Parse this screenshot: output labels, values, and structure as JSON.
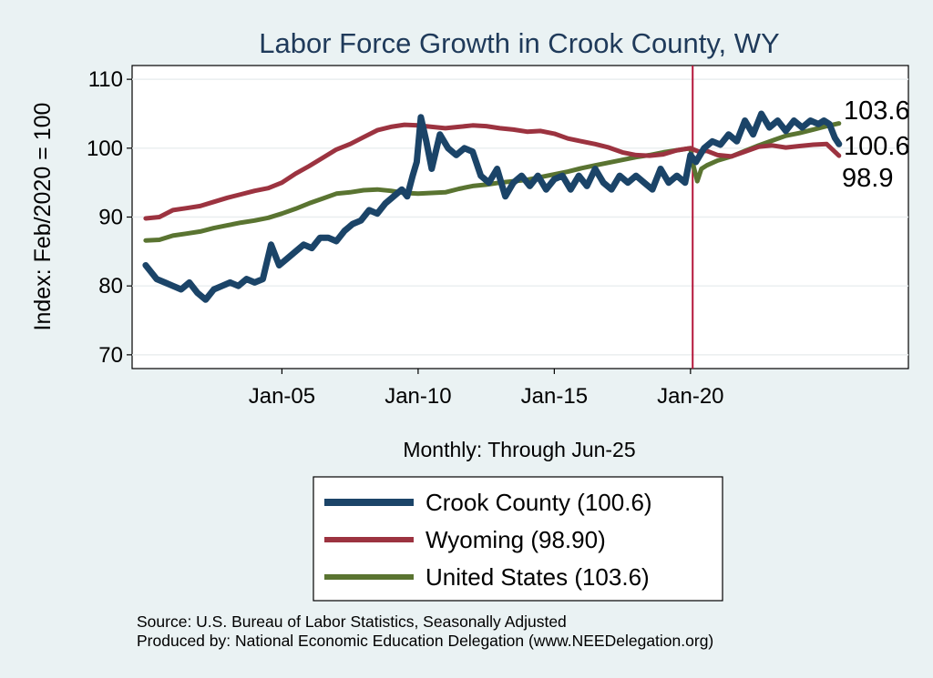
{
  "chart_data": {
    "type": "line",
    "title": "Labor Force Growth in Crook  County, WY",
    "ylabel": "Index: Feb/2020 = 100",
    "xlabel": "Monthly: Through Jun-25",
    "ylim": [
      68,
      112
    ],
    "xlim": [
      1999.5,
      2028
    ],
    "yticks": [
      70,
      80,
      90,
      100,
      110
    ],
    "xticks": [
      {
        "label": "Jan-05",
        "x": 2005
      },
      {
        "label": "Jan-10",
        "x": 2010
      },
      {
        "label": "Jan-15",
        "x": 2015
      },
      {
        "label": "Jan-20",
        "x": 2020
      }
    ],
    "reference_line_x": 2020.08,
    "grid": true,
    "series": [
      {
        "name": "Crook  County",
        "legend_label": "Crook  County (100.6)",
        "color": "#1b4468",
        "end_label": "100.6",
        "x": [
          2000.0,
          2000.2,
          2000.4,
          2000.7,
          2001.0,
          2001.3,
          2001.6,
          2001.9,
          2002.2,
          2002.5,
          2002.8,
          2003.1,
          2003.4,
          2003.7,
          2004.0,
          2004.3,
          2004.6,
          2004.9,
          2005.2,
          2005.5,
          2005.8,
          2006.1,
          2006.4,
          2006.7,
          2007.0,
          2007.3,
          2007.6,
          2007.9,
          2008.2,
          2008.5,
          2008.8,
          2009.1,
          2009.4,
          2009.6,
          2009.8,
          2009.95,
          2010.1,
          2010.3,
          2010.5,
          2010.8,
          2011.1,
          2011.4,
          2011.7,
          2012.0,
          2012.3,
          2012.6,
          2012.9,
          2013.2,
          2013.5,
          2013.8,
          2014.1,
          2014.4,
          2014.7,
          2015.0,
          2015.3,
          2015.6,
          2015.9,
          2016.2,
          2016.5,
          2016.8,
          2017.1,
          2017.4,
          2017.7,
          2018.0,
          2018.3,
          2018.6,
          2018.9,
          2019.2,
          2019.5,
          2019.8,
          2020.0,
          2020.2,
          2020.5,
          2020.8,
          2021.1,
          2021.4,
          2021.7,
          2022.0,
          2022.3,
          2022.6,
          2022.9,
          2023.2,
          2023.5,
          2023.8,
          2024.1,
          2024.4,
          2024.7,
          2024.9,
          2025.1,
          2025.3,
          2025.45
        ],
        "values": [
          83,
          82,
          81,
          80.5,
          80,
          79.5,
          80.5,
          79,
          78,
          79.5,
          80,
          80.5,
          80,
          81,
          80.5,
          81,
          86,
          83,
          84,
          85,
          86,
          85.5,
          87,
          87,
          86.5,
          88,
          89,
          89.5,
          91,
          90.5,
          92,
          93,
          94,
          93,
          96,
          98,
          104.5,
          101,
          97,
          102,
          100,
          99,
          100,
          99.5,
          96,
          95,
          97,
          93,
          95,
          96,
          94.5,
          96,
          94,
          95.5,
          96,
          94,
          96,
          94.5,
          97,
          95,
          94,
          96,
          95,
          96,
          95,
          94,
          97,
          95,
          96,
          95,
          99,
          98,
          100,
          101,
          100.5,
          102,
          101,
          104,
          102,
          105,
          103,
          104,
          102.5,
          104,
          103,
          104,
          103.5,
          104,
          103.5,
          101.5,
          100.6
        ]
      },
      {
        "name": "Wyoming",
        "legend_label": "Wyoming (98.90)",
        "color": "#9c3340",
        "end_label": "98.9",
        "x": [
          2000.0,
          2000.5,
          2001.0,
          2001.5,
          2002.0,
          2002.5,
          2003.0,
          2003.5,
          2004.0,
          2004.5,
          2005.0,
          2005.5,
          2006.0,
          2006.5,
          2007.0,
          2007.5,
          2008.0,
          2008.5,
          2009.0,
          2009.5,
          2010.0,
          2010.5,
          2011.0,
          2011.5,
          2012.0,
          2012.5,
          2013.0,
          2013.5,
          2014.0,
          2014.5,
          2015.0,
          2015.5,
          2016.0,
          2016.5,
          2017.0,
          2017.5,
          2018.0,
          2018.5,
          2019.0,
          2019.5,
          2020.0,
          2020.3,
          2020.6,
          2021.0,
          2021.5,
          2022.0,
          2022.5,
          2023.0,
          2023.5,
          2024.0,
          2024.5,
          2025.0,
          2025.45
        ],
        "values": [
          89.8,
          90,
          91,
          91.3,
          91.6,
          92.2,
          92.8,
          93.3,
          93.8,
          94.2,
          95,
          96.3,
          97.4,
          98.6,
          99.8,
          100.6,
          101.6,
          102.6,
          103.1,
          103.4,
          103.3,
          103.1,
          102.9,
          103.1,
          103.3,
          103.2,
          102.9,
          102.7,
          102.4,
          102.5,
          102.1,
          101.4,
          101,
          100.6,
          100.1,
          99.4,
          99,
          98.9,
          99.1,
          99.7,
          100,
          99.5,
          99.6,
          99,
          98.8,
          99.5,
          100.2,
          100.4,
          100.1,
          100.3,
          100.5,
          100.6,
          98.9
        ]
      },
      {
        "name": "United States",
        "legend_label": "United States (103.6)",
        "color": "#5a7431",
        "end_label": "103.6",
        "x": [
          2000.0,
          2000.5,
          2001.0,
          2001.5,
          2002.0,
          2002.5,
          2003.0,
          2003.5,
          2004.0,
          2004.5,
          2005.0,
          2005.5,
          2006.0,
          2006.5,
          2007.0,
          2007.5,
          2008.0,
          2008.5,
          2009.0,
          2009.5,
          2010.0,
          2010.5,
          2011.0,
          2011.5,
          2012.0,
          2012.5,
          2013.0,
          2013.5,
          2014.0,
          2014.5,
          2015.0,
          2015.5,
          2016.0,
          2016.5,
          2017.0,
          2017.5,
          2018.0,
          2018.5,
          2019.0,
          2019.5,
          2020.0,
          2020.1,
          2020.25,
          2020.4,
          2020.6,
          2021.0,
          2021.5,
          2022.0,
          2022.5,
          2023.0,
          2023.5,
          2024.0,
          2024.5,
          2025.0,
          2025.45
        ],
        "values": [
          86.6,
          86.7,
          87.3,
          87.6,
          87.9,
          88.4,
          88.8,
          89.2,
          89.5,
          89.9,
          90.5,
          91.2,
          92,
          92.7,
          93.4,
          93.6,
          93.9,
          94,
          93.8,
          93.5,
          93.4,
          93.5,
          93.6,
          94.1,
          94.5,
          94.7,
          95,
          95.2,
          95.4,
          95.8,
          96.2,
          96.6,
          97.1,
          97.5,
          97.9,
          98.3,
          98.7,
          99,
          99.4,
          99.7,
          100,
          97.6,
          95.2,
          97,
          97.5,
          98.2,
          98.8,
          99.6,
          100.4,
          101.1,
          101.8,
          102.2,
          102.7,
          103.2,
          103.6
        ]
      }
    ]
  },
  "footer": {
    "source": "Source: U.S. Bureau of Labor Statistics, Seasonally Adjusted",
    "producer": "Produced by: National Economic Education Delegation (www.NEEDelegation.org)"
  }
}
